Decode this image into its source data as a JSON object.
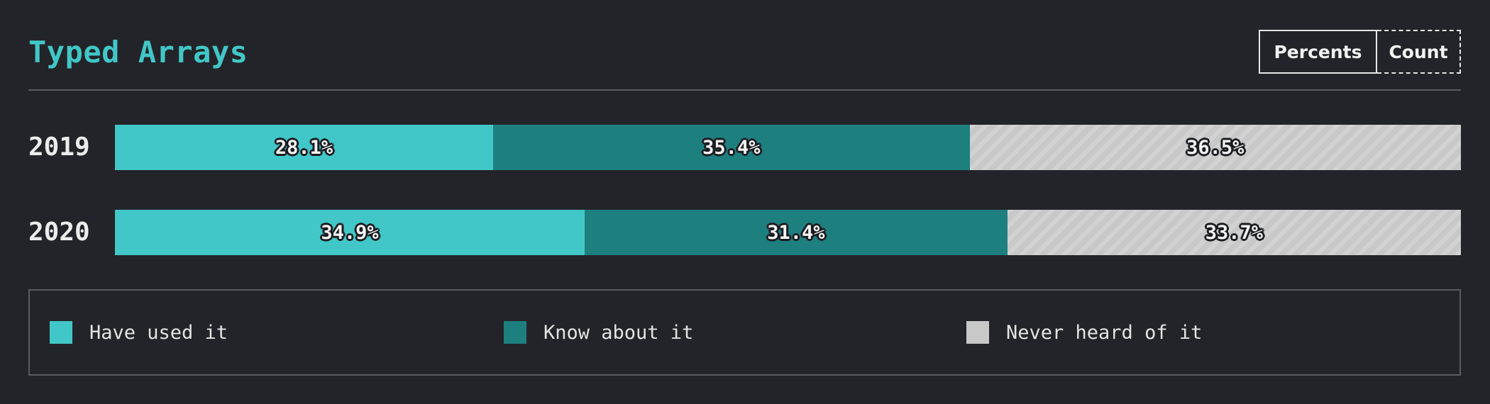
{
  "header": {
    "title": "Typed Arrays",
    "toggle": {
      "percents_label": "Percents",
      "count_label": "Count",
      "selected": "Percents"
    }
  },
  "colors": {
    "title": "#41c7c7",
    "have_used_it": "#41c7c7",
    "know_about_it": "#1e7f7f",
    "never_heard_of_it": "#c8c8c8",
    "background": "#232429"
  },
  "chart_data": {
    "type": "bar",
    "orientation": "horizontal",
    "stacked": true,
    "title": "Typed Arrays",
    "categories": [
      "2019",
      "2020"
    ],
    "series": [
      {
        "name": "Have used it",
        "values": [
          28.1,
          34.9
        ],
        "labels": [
          "28.1%",
          "34.9%"
        ]
      },
      {
        "name": "Know about it",
        "values": [
          35.4,
          31.4
        ],
        "labels": [
          "35.4%",
          "31.4%"
        ]
      },
      {
        "name": "Never heard of it",
        "values": [
          36.5,
          33.7
        ],
        "labels": [
          "36.5%",
          "33.7%"
        ]
      }
    ],
    "xlim": [
      0,
      100
    ],
    "unit": "%",
    "grid": false,
    "legend_position": "bottom"
  },
  "legend": {
    "items": [
      {
        "label": "Have used it",
        "color": "#41c7c7"
      },
      {
        "label": "Know about it",
        "color": "#1e7f7f"
      },
      {
        "label": "Never heard of it",
        "color": "#c8c8c8"
      }
    ]
  }
}
